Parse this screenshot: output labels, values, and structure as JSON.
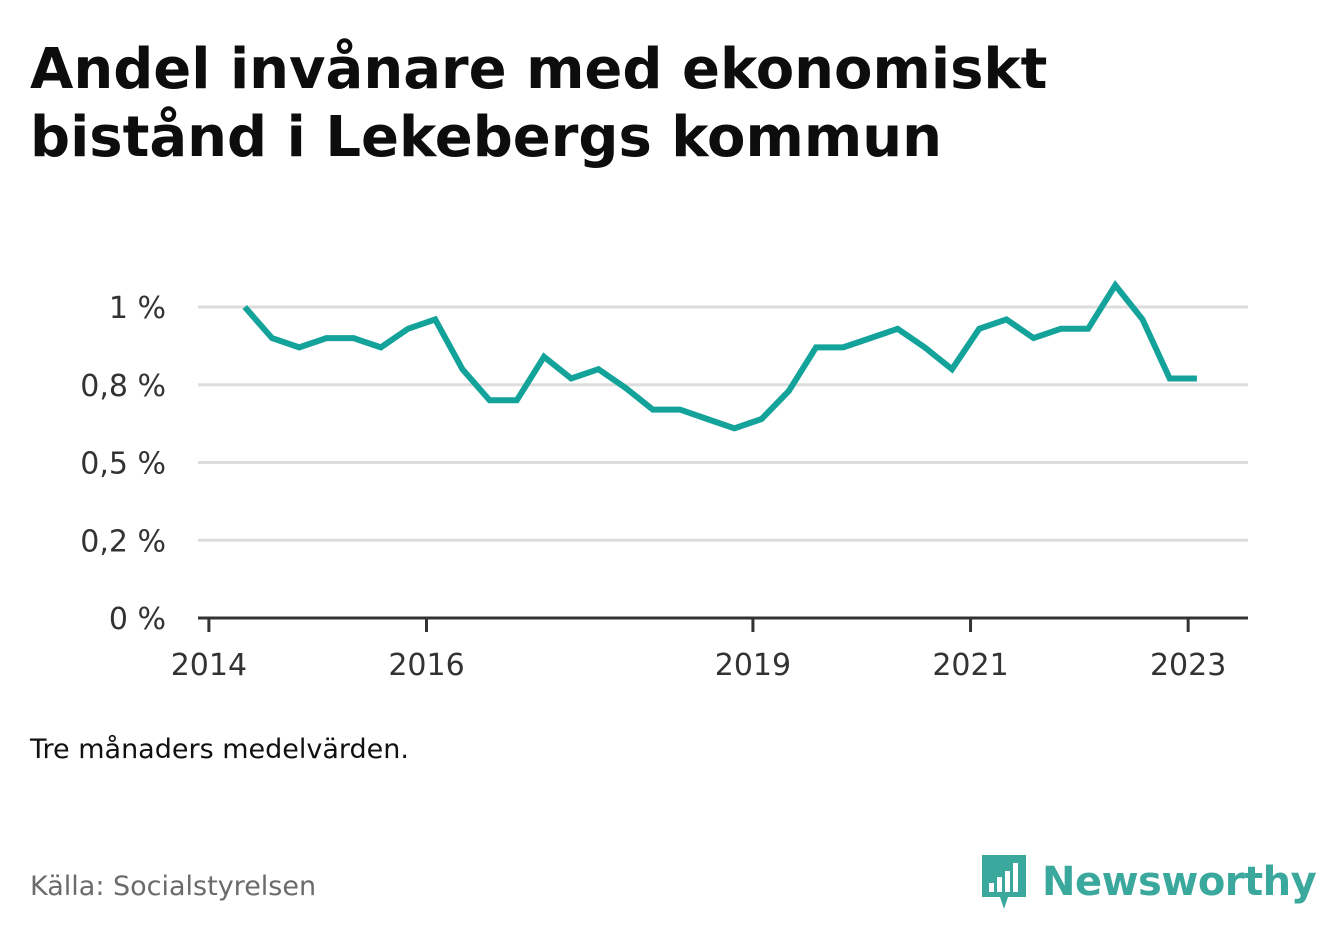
{
  "title": "Andel invånare med ekonomiskt bistånd i Lekebergs kommun",
  "note": "Tre månaders medelvärden.",
  "source": "Källa: Socialstyrelsen",
  "brand": {
    "name": "Newsworthy",
    "icon": "newsworthy-logo-icon",
    "color": "#3aa89c"
  },
  "chart_data": {
    "type": "line",
    "title": "Andel invånare med ekonomiskt bistånd i Lekebergs kommun",
    "xlabel": "",
    "ylabel": "",
    "xlim": [
      2013.9,
      2023.55
    ],
    "ylim": [
      0,
      1
    ],
    "yticks": [
      {
        "value": 0,
        "label": "0 %"
      },
      {
        "value": 0.25,
        "label": "0,2 %"
      },
      {
        "value": 0.5,
        "label": "0,5 %"
      },
      {
        "value": 0.75,
        "label": "0,8 %"
      },
      {
        "value": 1,
        "label": "1 %"
      }
    ],
    "xticks": [
      {
        "value": 2014,
        "label": "2014"
      },
      {
        "value": 2016,
        "label": "2016"
      },
      {
        "value": 2019,
        "label": "2019"
      },
      {
        "value": 2021,
        "label": "2021"
      },
      {
        "value": 2023,
        "label": "2023"
      }
    ],
    "grid": true,
    "line_color": "#14a39a",
    "series": [
      {
        "x": [
          2014.33,
          2014.58,
          2014.83,
          2015.08,
          2015.33,
          2015.58,
          2015.83,
          2016.08,
          2016.33,
          2016.58,
          2016.83,
          2017.08,
          2017.33,
          2017.58,
          2017.83,
          2018.08,
          2018.33,
          2018.58,
          2018.83,
          2019.08,
          2019.33,
          2019.58,
          2019.83,
          2020.08,
          2020.33,
          2020.58,
          2020.83,
          2021.08,
          2021.33,
          2021.58,
          2021.83,
          2022.08,
          2022.33,
          2022.58,
          2022.83,
          2023.08
        ],
        "y": [
          1.0,
          0.9,
          0.87,
          0.9,
          0.9,
          0.87,
          0.93,
          0.96,
          0.8,
          0.7,
          0.7,
          0.84,
          0.77,
          0.8,
          0.74,
          0.67,
          0.67,
          0.64,
          0.61,
          0.64,
          0.73,
          0.87,
          0.87,
          0.9,
          0.93,
          0.87,
          0.8,
          0.93,
          0.96,
          0.9,
          0.93,
          0.93,
          1.07,
          0.96,
          0.77,
          0.77
        ]
      }
    ]
  }
}
